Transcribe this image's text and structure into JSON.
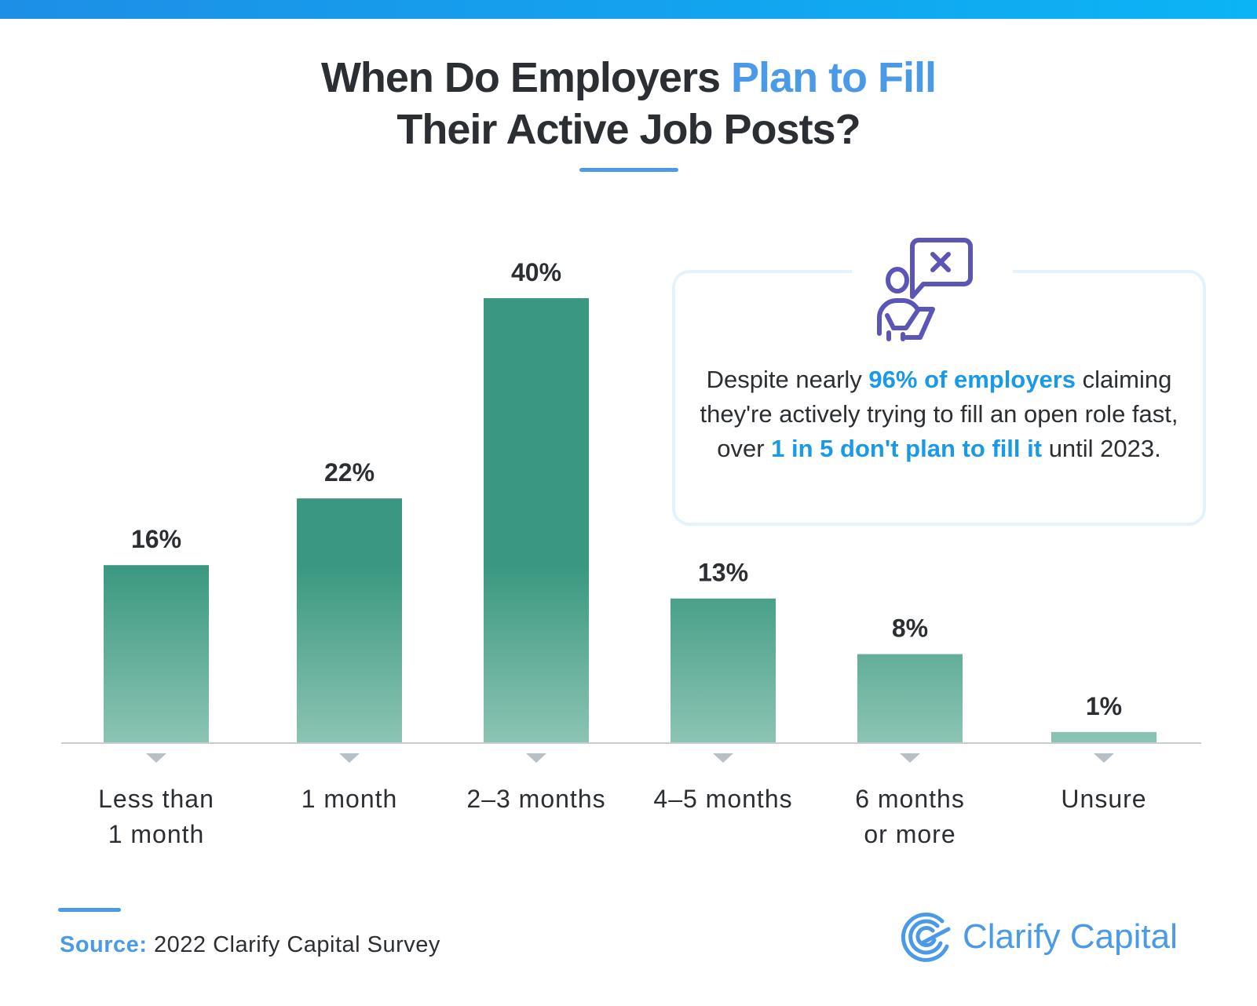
{
  "header": {
    "title_part1": "When Do Employers ",
    "title_highlight": "Plan to Fill",
    "title_line2": "Their Active Job Posts?"
  },
  "chart_data": {
    "type": "bar",
    "categories": [
      [
        "Less than",
        "1 month"
      ],
      [
        "1 month"
      ],
      [
        "2–3 months"
      ],
      [
        "4–5 months"
      ],
      [
        "6 months",
        "or more"
      ],
      [
        "Unsure"
      ]
    ],
    "values": [
      16,
      22,
      40,
      13,
      8,
      1
    ],
    "value_labels": [
      "16%",
      "22%",
      "40%",
      "13%",
      "8%",
      "1%"
    ],
    "unit": "%",
    "ylim": [
      0,
      40
    ],
    "grid": false,
    "colors": {
      "bar_top": "#3a9880",
      "bar_bottom": "#8cc4b3",
      "axis": "#c8ccd0",
      "marker": "#b8c0c6"
    }
  },
  "callout": {
    "icon": "person-with-speech-bubble-x-icon",
    "t1": "Despite nearly ",
    "b1": "96% of employers",
    "t2": " claiming they're actively trying to fill an open role fast, over ",
    "b2": "1 in 5 don't plan to fill it",
    "t3": " until 2023."
  },
  "footer": {
    "source_label": "Source:",
    "source_text": " 2022 Clarify Capital Survey",
    "logo_text": "Clarify Capital"
  },
  "colors": {
    "accent": "#4a9ae8",
    "callout_highlight": "#1a9ae6",
    "icon": "#5b55b8"
  }
}
